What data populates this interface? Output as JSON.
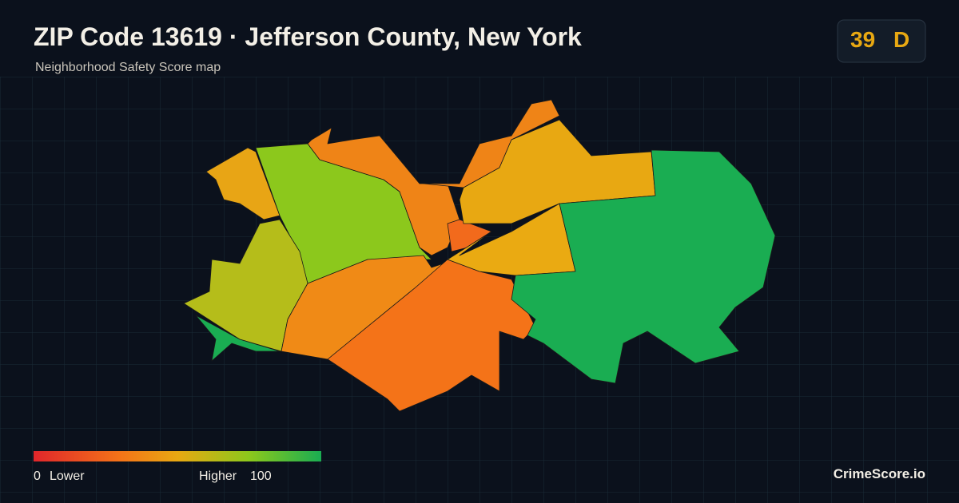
{
  "header": {
    "title": "ZIP Code 13619 · Jefferson County, New York",
    "subtitle": "Neighborhood Safety Score map"
  },
  "badge": {
    "score": "39",
    "grade": "D"
  },
  "legend": {
    "min": "0",
    "min_label": "Lower",
    "max_label": "Higher",
    "max": "100"
  },
  "brand": "CrimeScore.io"
}
